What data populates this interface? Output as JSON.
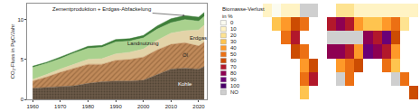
{
  "chart_data": [
    {
      "type": "area",
      "stacked": true,
      "y_label": "CO₂-Fluss in PgC/Jahr",
      "x": [
        1960,
        1965,
        1970,
        1975,
        1980,
        1985,
        1990,
        1995,
        2000,
        2005,
        2010,
        2015,
        2020,
        2022
      ],
      "xlim": [
        1958,
        2023
      ],
      "xticks": [
        1960,
        1970,
        1980,
        1990,
        2000,
        2010,
        2020
      ],
      "ylim": [
        0,
        12
      ],
      "yticks": [
        0,
        5,
        10
      ],
      "series": [
        {
          "name": "Kohle",
          "color": "#6b5a48",
          "values": [
            1.4,
            1.5,
            1.6,
            1.7,
            2.0,
            2.2,
            2.3,
            2.3,
            2.4,
            3.1,
            3.8,
            3.9,
            3.8,
            4.1
          ]
        },
        {
          "name": "Öl",
          "color": "#c08a5a",
          "values": [
            0.9,
            1.3,
            1.8,
            2.2,
            2.4,
            2.2,
            2.6,
            2.7,
            2.9,
            3.1,
            3.1,
            3.2,
            2.9,
            3.1
          ]
        },
        {
          "name": "Erdgas",
          "color": "#e3d3a8",
          "values": [
            0.2,
            0.3,
            0.4,
            0.5,
            0.6,
            0.7,
            0.8,
            0.9,
            1.0,
            1.2,
            1.4,
            1.5,
            2.0,
            2.1
          ]
        },
        {
          "name": "Landnutzung",
          "color": "#a9d18e",
          "values": [
            1.5,
            1.4,
            1.3,
            1.4,
            1.4,
            1.4,
            1.5,
            1.4,
            1.4,
            1.4,
            1.3,
            1.4,
            1.1,
            1.1
          ]
        },
        {
          "name": "Zementproduktion + Erdgas-Abfackelung",
          "color": "#3f7f3a",
          "values": [
            0.15,
            0.15,
            0.2,
            0.2,
            0.25,
            0.25,
            0.3,
            0.3,
            0.3,
            0.4,
            0.5,
            0.5,
            0.5,
            0.5
          ]
        }
      ]
    },
    {
      "type": "heatmap",
      "tick_labels": false,
      "legend_title": [
        "Biomasse-Verlust",
        "in %"
      ],
      "classes": [
        {
          "value": 0,
          "color": "#fbfbf0"
        },
        {
          "value": 10,
          "color": "#fff3c4"
        },
        {
          "value": 20,
          "color": "#fee391"
        },
        {
          "value": 30,
          "color": "#fec44f"
        },
        {
          "value": 40,
          "color": "#fe9929"
        },
        {
          "value": 50,
          "color": "#ec7014"
        },
        {
          "value": 60,
          "color": "#cc4c02"
        },
        {
          "value": 70,
          "color": "#b2182b"
        },
        {
          "value": 80,
          "color": "#8e0152"
        },
        {
          "value": 90,
          "color": "#6a0177"
        },
        {
          "value": 100,
          "color": "#49006a"
        },
        {
          "label": "NO",
          "color": "#cfcfcf"
        }
      ],
      "x": [
        -170,
        -150,
        -130,
        -110,
        -90,
        -70,
        -50,
        -30,
        -10,
        10,
        30,
        50,
        70,
        90,
        110,
        130,
        150,
        170
      ],
      "y": [
        70,
        50,
        30,
        10,
        -10,
        -30,
        -50
      ],
      "xlim": [
        -180,
        180
      ],
      "ylim": [
        -60,
        80
      ],
      "z": [
        [
          null,
          10,
          0,
          10,
          10,
          "NO",
          "NO",
          null,
          null,
          20,
          20,
          10,
          10,
          10,
          10,
          10,
          10,
          10
        ],
        [
          null,
          null,
          30,
          40,
          60,
          50,
          null,
          null,
          70,
          80,
          70,
          40,
          30,
          30,
          40,
          50,
          20,
          null
        ],
        [
          null,
          null,
          null,
          50,
          70,
          null,
          null,
          null,
          "NO",
          "NO",
          "NO",
          "NO",
          80,
          70,
          90,
          60,
          null,
          null
        ],
        [
          null,
          null,
          null,
          null,
          60,
          50,
          null,
          null,
          80,
          80,
          70,
          40,
          90,
          80,
          70,
          40,
          null,
          null
        ],
        [
          null,
          null,
          null,
          null,
          null,
          40,
          60,
          null,
          null,
          40,
          50,
          60,
          null,
          null,
          50,
          30,
          null,
          null
        ],
        [
          null,
          null,
          null,
          null,
          null,
          50,
          70,
          null,
          null,
          "NO",
          50,
          null,
          null,
          null,
          null,
          "NO",
          50,
          null
        ],
        [
          null,
          null,
          null,
          null,
          null,
          30,
          null,
          null,
          null,
          null,
          null,
          null,
          null,
          null,
          null,
          null,
          null,
          60
        ]
      ]
    }
  ]
}
